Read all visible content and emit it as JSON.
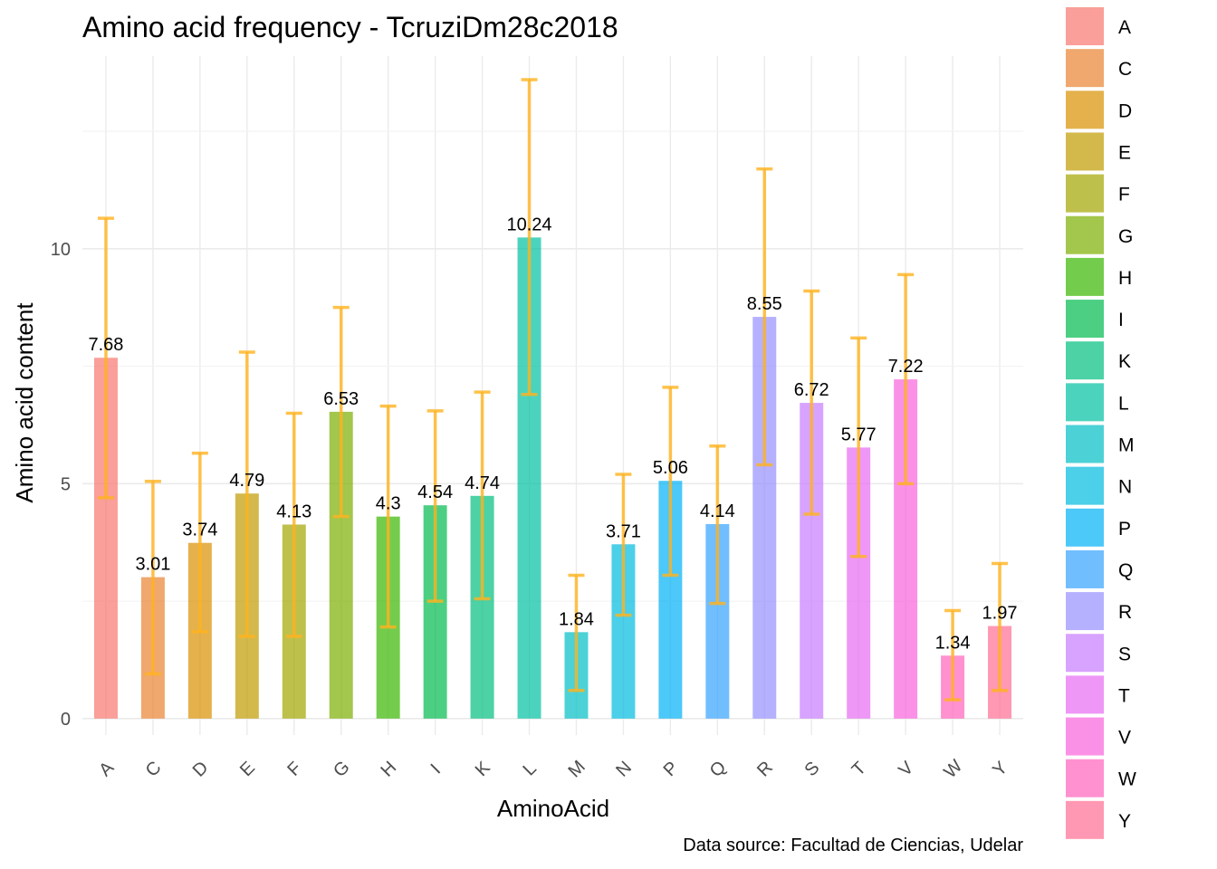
{
  "chart_data": {
    "type": "bar",
    "title": "Amino acid frequency - TcruziDm28c2018",
    "xlabel": "AminoAcid",
    "ylabel": "Amino acid content",
    "caption": "Data source: Facultad de Ciencias, Udelar",
    "categories": [
      "A",
      "C",
      "D",
      "E",
      "F",
      "G",
      "H",
      "I",
      "K",
      "L",
      "M",
      "N",
      "P",
      "Q",
      "R",
      "S",
      "T",
      "V",
      "W",
      "Y"
    ],
    "values": [
      7.68,
      3.01,
      3.74,
      4.79,
      4.13,
      6.53,
      4.3,
      4.54,
      4.74,
      10.24,
      1.84,
      3.71,
      5.06,
      4.14,
      8.55,
      6.72,
      5.77,
      7.22,
      1.34,
      1.97
    ],
    "value_labels": [
      "7.68",
      "3.01",
      "3.74",
      "4.79",
      "4.13",
      "6.53",
      "4.3",
      "4.54",
      "4.74",
      "10.24",
      "1.84",
      "3.71",
      "5.06",
      "4.14",
      "8.55",
      "6.72",
      "5.77",
      "7.22",
      "1.34",
      "1.97"
    ],
    "error_low": [
      4.7,
      0.95,
      1.85,
      1.75,
      1.75,
      4.3,
      1.95,
      2.5,
      2.55,
      6.9,
      0.6,
      2.2,
      3.05,
      2.45,
      5.4,
      4.35,
      3.45,
      5.0,
      0.4,
      0.6
    ],
    "error_high": [
      10.65,
      5.05,
      5.65,
      7.8,
      6.5,
      8.75,
      6.65,
      6.55,
      6.95,
      13.6,
      3.05,
      5.2,
      7.05,
      5.8,
      11.7,
      9.1,
      8.1,
      9.45,
      2.3,
      3.3
    ],
    "ylim": [
      -0.35,
      14.1
    ],
    "yticks": [
      0,
      5,
      10
    ],
    "ytick_labels": [
      "0",
      "5",
      "10"
    ],
    "grid": true,
    "legend_position": "right",
    "error_bar_color": "#FFB31F",
    "colors": [
      "#F8766D",
      "#EA8331",
      "#D89000",
      "#C09B00",
      "#A3A500",
      "#7CAE00",
      "#39B600",
      "#00BB4E",
      "#00BF7D",
      "#00C1A3",
      "#00BFC4",
      "#00BAE0",
      "#00B0F6",
      "#35A2FF",
      "#9590FF",
      "#C77CFF",
      "#E76BF3",
      "#FA62DB",
      "#FF62BC",
      "#FF6C91"
    ]
  }
}
